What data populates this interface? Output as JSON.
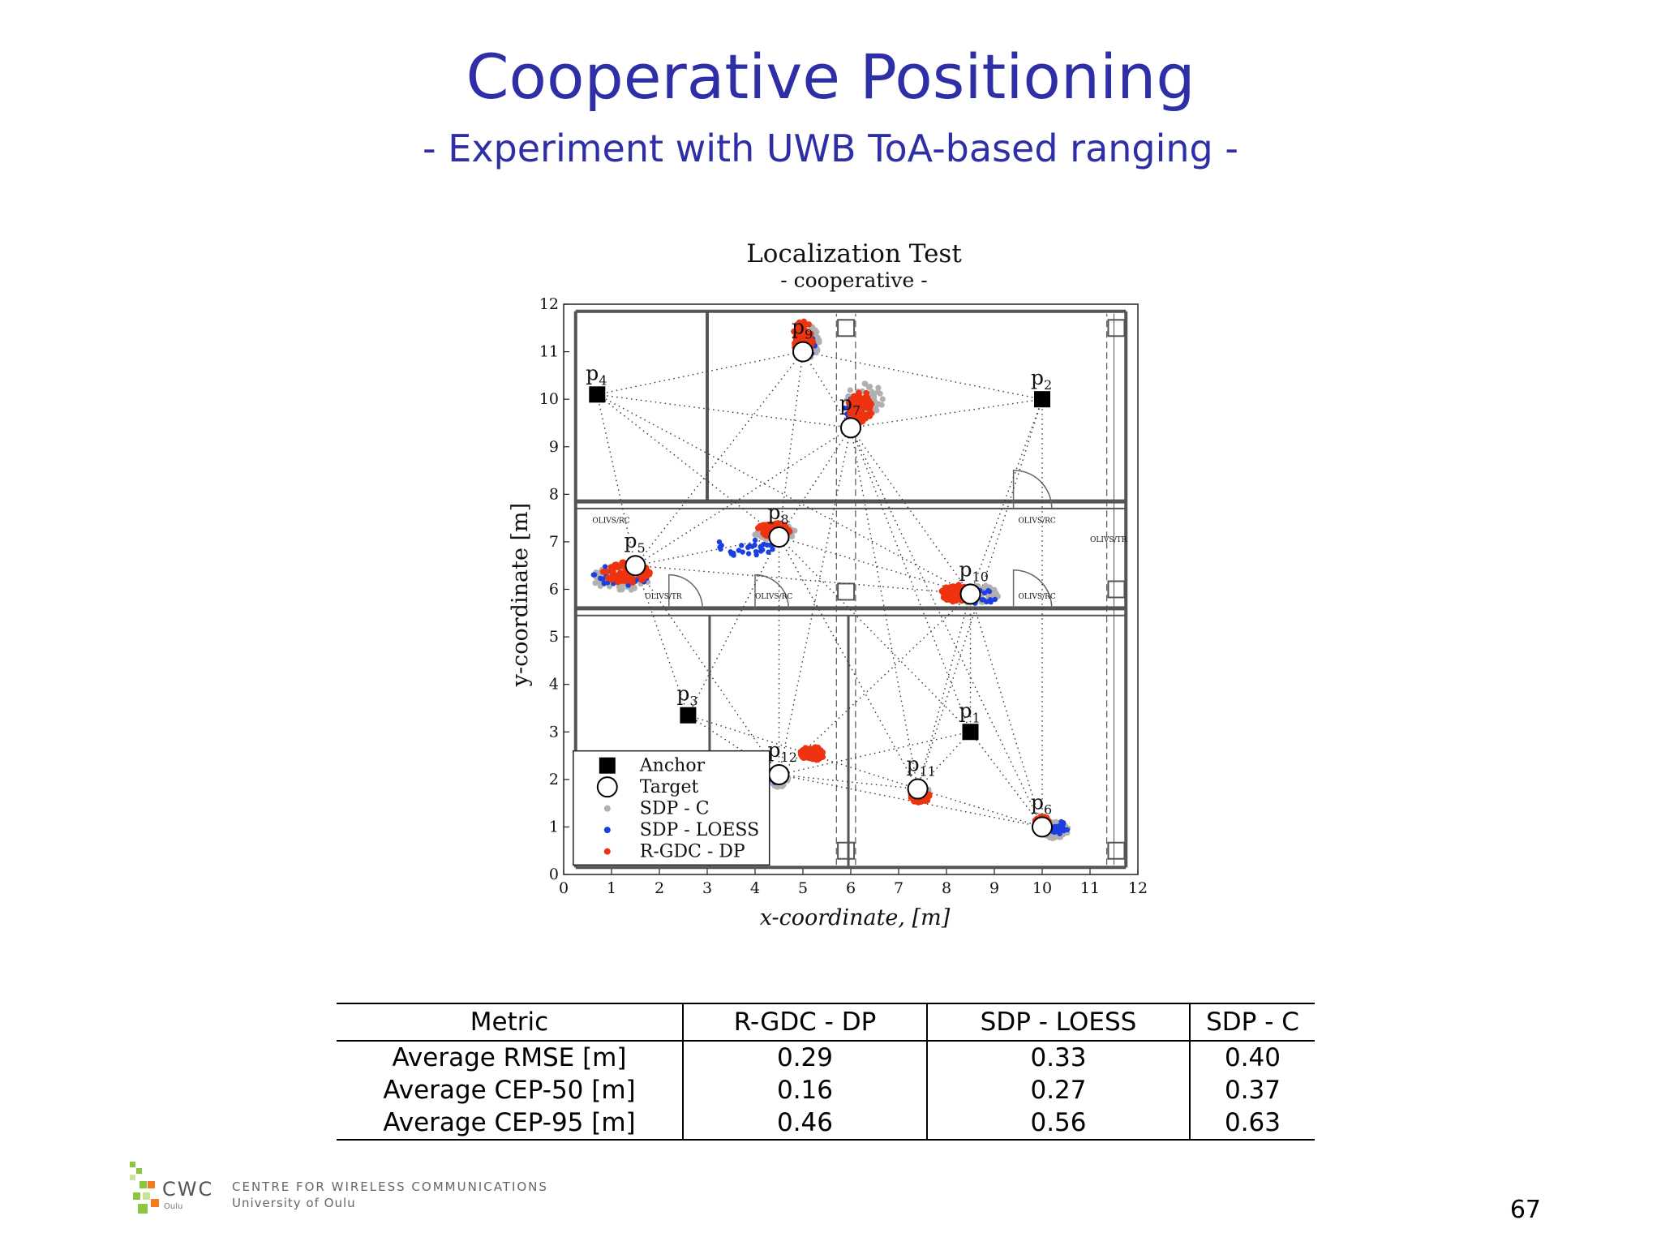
{
  "slide": {
    "title": "Cooperative Positioning",
    "subtitle": "- Experiment with UWB ToA-based ranging -",
    "page_number": "67"
  },
  "footer": {
    "logo_short": "CWC",
    "logo_city": "Oulu",
    "centre_name": "CENTRE FOR WIRELESS COMMUNICATIONS",
    "university": "University of Oulu"
  },
  "chart_data": {
    "type": "scatter",
    "title": "Localization Test",
    "subtitle": "- cooperative -",
    "xlabel": "x-coordinate, [m]",
    "ylabel": "y-coordinate [m]",
    "xlim": [
      0,
      12
    ],
    "ylim": [
      0,
      12
    ],
    "xticks": [
      0,
      1,
      2,
      3,
      4,
      5,
      6,
      7,
      8,
      9,
      10,
      11,
      12
    ],
    "yticks": [
      0,
      1,
      2,
      3,
      4,
      5,
      6,
      7,
      8,
      9,
      10,
      11,
      12
    ],
    "grid": false,
    "legend_position": "bottom-left",
    "legend": [
      {
        "label": "Anchor",
        "marker": "square",
        "color": "#000000"
      },
      {
        "label": "Target",
        "marker": "circle-open",
        "color": "#000000"
      },
      {
        "label": "SDP - C",
        "marker": "dot",
        "color": "#b0b0b0"
      },
      {
        "label": "SDP - LOESS",
        "marker": "dot",
        "color": "#1c3fe0"
      },
      {
        "label": "R-GDC - DP",
        "marker": "dot",
        "color": "#ee3311"
      }
    ],
    "anchors": [
      {
        "label": "p",
        "sub": "1",
        "x": 8.5,
        "y": 3.0
      },
      {
        "label": "p",
        "sub": "2",
        "x": 10.0,
        "y": 10.0
      },
      {
        "label": "p",
        "sub": "3",
        "x": 2.6,
        "y": 3.35
      },
      {
        "label": "p",
        "sub": "4",
        "x": 0.7,
        "y": 10.1
      }
    ],
    "targets": [
      {
        "label": "p",
        "sub": "5",
        "x": 1.5,
        "y": 6.5
      },
      {
        "label": "p",
        "sub": "6",
        "x": 10.0,
        "y": 1.0
      },
      {
        "label": "p",
        "sub": "7",
        "x": 6.0,
        "y": 9.4
      },
      {
        "label": "p",
        "sub": "8",
        "x": 4.5,
        "y": 7.1
      },
      {
        "label": "p",
        "sub": "9",
        "x": 5.0,
        "y": 11.0
      },
      {
        "label": "p",
        "sub": "10",
        "x": 8.5,
        "y": 5.9
      },
      {
        "label": "p",
        "sub": "11",
        "x": 7.4,
        "y": 1.8
      },
      {
        "label": "p",
        "sub": "12",
        "x": 4.5,
        "y": 2.1
      }
    ],
    "links": [
      [
        "4",
        "9"
      ],
      [
        "4",
        "7"
      ],
      [
        "4",
        "8"
      ],
      [
        "4",
        "5"
      ],
      [
        "4",
        "10"
      ],
      [
        "2",
        "9"
      ],
      [
        "2",
        "7"
      ],
      [
        "2",
        "10"
      ],
      [
        "2",
        "6"
      ],
      [
        "2",
        "11"
      ],
      [
        "9",
        "7"
      ],
      [
        "9",
        "8"
      ],
      [
        "9",
        "5"
      ],
      [
        "7",
        "8"
      ],
      [
        "7",
        "10"
      ],
      [
        "7",
        "11"
      ],
      [
        "7",
        "6"
      ],
      [
        "7",
        "12"
      ],
      [
        "7",
        "5"
      ],
      [
        "8",
        "5"
      ],
      [
        "8",
        "10"
      ],
      [
        "8",
        "12"
      ],
      [
        "8",
        "11"
      ],
      [
        "5",
        "3"
      ],
      [
        "5",
        "12"
      ],
      [
        "5",
        "10"
      ],
      [
        "10",
        "11"
      ],
      [
        "10",
        "6"
      ],
      [
        "10",
        "12"
      ],
      [
        "3",
        "12"
      ],
      [
        "3",
        "11"
      ],
      [
        "3",
        "8"
      ],
      [
        "12",
        "11"
      ],
      [
        "11",
        "6"
      ],
      [
        "12",
        "6"
      ],
      [
        "1",
        "11"
      ],
      [
        "1",
        "6"
      ],
      [
        "1",
        "12"
      ],
      [
        "1",
        "10"
      ],
      [
        "1",
        "8"
      ],
      [
        "1",
        "7"
      ]
    ],
    "clusters": [
      {
        "target": "9",
        "sdp_c": {
          "cx": 5.1,
          "cy": 11.2,
          "rx": 0.25,
          "ry": 0.35
        },
        "loess": {
          "cx": 5.05,
          "cy": 11.15,
          "rx": 0.2,
          "ry": 0.3
        },
        "rgdc": {
          "cx": 5.0,
          "cy": 11.3,
          "rx": 0.22,
          "ry": 0.35
        }
      },
      {
        "target": "7",
        "sdp_c": {
          "cx": 6.3,
          "cy": 10.0,
          "rx": 0.4,
          "ry": 0.35
        },
        "loess": {
          "cx": 6.1,
          "cy": 9.8,
          "rx": 0.25,
          "ry": 0.3
        },
        "rgdc": {
          "cx": 6.2,
          "cy": 9.85,
          "rx": 0.25,
          "ry": 0.35
        }
      },
      {
        "target": "8",
        "sdp_c": {
          "cx": 4.4,
          "cy": 7.2,
          "rx": 0.45,
          "ry": 0.18
        },
        "loess": {
          "cx": 3.8,
          "cy": 6.9,
          "rx": 0.7,
          "ry": 0.2
        },
        "rgdc": {
          "cx": 4.4,
          "cy": 7.25,
          "rx": 0.35,
          "ry": 0.15
        }
      },
      {
        "target": "5",
        "sdp_c": {
          "cx": 1.2,
          "cy": 6.25,
          "rx": 0.6,
          "ry": 0.28
        },
        "loess": {
          "cx": 1.2,
          "cy": 6.3,
          "rx": 0.6,
          "ry": 0.25
        },
        "rgdc": {
          "cx": 1.3,
          "cy": 6.35,
          "rx": 0.5,
          "ry": 0.22
        }
      },
      {
        "target": "10",
        "sdp_c": {
          "cx": 8.6,
          "cy": 5.9,
          "rx": 0.5,
          "ry": 0.2
        },
        "loess": {
          "cx": 8.7,
          "cy": 5.85,
          "rx": 0.4,
          "ry": 0.15
        },
        "rgdc": {
          "cx": 8.2,
          "cy": 5.92,
          "rx": 0.32,
          "ry": 0.18
        }
      },
      {
        "target": "12",
        "sdp_c": {
          "cx": 4.5,
          "cy": 2.05,
          "rx": 0.2,
          "ry": 0.22
        },
        "loess": {
          "cx": 4.45,
          "cy": 2.1,
          "rx": 0.15,
          "ry": 0.18
        },
        "rgdc": {
          "cx": 5.2,
          "cy": 2.55,
          "rx": 0.25,
          "ry": 0.15
        }
      },
      {
        "target": "11",
        "sdp_c": {
          "cx": 7.45,
          "cy": 1.7,
          "rx": 0.2,
          "ry": 0.18
        },
        "loess": {
          "cx": 7.4,
          "cy": 1.75,
          "rx": 0.15,
          "ry": 0.15
        },
        "rgdc": {
          "cx": 7.45,
          "cy": 1.65,
          "rx": 0.2,
          "ry": 0.15
        }
      },
      {
        "target": "6",
        "sdp_c": {
          "cx": 10.25,
          "cy": 0.95,
          "rx": 0.3,
          "ry": 0.2
        },
        "loess": {
          "cx": 10.3,
          "cy": 1.0,
          "rx": 0.25,
          "ry": 0.15
        },
        "rgdc": {
          "cx": 10.0,
          "cy": 1.1,
          "rx": 0.15,
          "ry": 0.12
        }
      }
    ],
    "floorplan_labels": [
      "OLIVS/RC",
      "OLIVS/RC",
      "OLIVS/RC",
      "OLIVS/RC",
      "OLIVS/TR",
      "OLIVS/TR"
    ]
  },
  "table": {
    "headers": [
      "Metric",
      "R-GDC - DP",
      "SDP - LOESS",
      "SDP - C"
    ],
    "rows": [
      [
        "Average RMSE [m]",
        "0.29",
        "0.33",
        "0.40"
      ],
      [
        "Average CEP-50 [m]",
        "0.16",
        "0.27",
        "0.37"
      ],
      [
        "Average CEP-95 [m]",
        "0.46",
        "0.56",
        "0.63"
      ]
    ]
  },
  "colors": {
    "title": "#2e2fa6",
    "sdp_c": "#b0b0b0",
    "sdp_loess": "#1c3fe0",
    "rgdc_dp": "#ee3311",
    "logo_green": "#8cc63f",
    "logo_orange": "#f47b20"
  }
}
